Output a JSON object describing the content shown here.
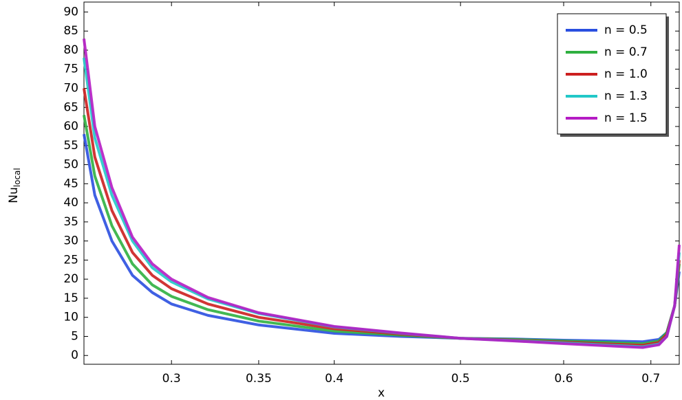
{
  "chart_data": {
    "type": "line",
    "xlabel": "x",
    "ylabel": "Nu",
    "ylabel_sub": "local",
    "x": [
      0.257,
      0.262,
      0.27,
      0.28,
      0.29,
      0.3,
      0.32,
      0.35,
      0.4,
      0.45,
      0.5,
      0.55,
      0.6,
      0.65,
      0.69,
      0.71,
      0.72,
      0.73,
      0.736
    ],
    "series": [
      {
        "name": "n = 0.5",
        "color": "#2a4fe0",
        "values": [
          58,
          42,
          30,
          21,
          16.5,
          13.5,
          10.5,
          8,
          5.8,
          5,
          4.5,
          4.3,
          4,
          3.8,
          3.6,
          4.2,
          6,
          13,
          22
        ]
      },
      {
        "name": "n = 0.7",
        "color": "#2fb040",
        "values": [
          63,
          47,
          34,
          24,
          18.5,
          15.5,
          12,
          9,
          6.4,
          5.3,
          4.5,
          4.2,
          3.8,
          3.4,
          3.1,
          3.8,
          6,
          13,
          24
        ]
      },
      {
        "name": "n = 1.0",
        "color": "#cc1f1f",
        "values": [
          70,
          52,
          38,
          27,
          21,
          17.5,
          13.5,
          10,
          7,
          5.6,
          4.5,
          4,
          3.5,
          3,
          2.7,
          3.4,
          5.5,
          13,
          25
        ]
      },
      {
        "name": "n = 1.3",
        "color": "#22c8c8",
        "values": [
          78,
          57,
          42,
          30,
          23,
          19.3,
          14.8,
          11,
          7.5,
          5.8,
          4.5,
          3.9,
          3.3,
          2.7,
          2.3,
          3,
          5,
          13,
          27
        ]
      },
      {
        "name": "n = 1.5",
        "color": "#b51cc4",
        "values": [
          83,
          60,
          44,
          31,
          24,
          20,
          15.2,
          11.2,
          7.6,
          5.9,
          4.5,
          3.8,
          3.1,
          2.5,
          2.1,
          2.8,
          5,
          13,
          29
        ]
      }
    ],
    "xlim": [
      0.257,
      0.736
    ],
    "xscale": "log",
    "xticks": [
      0.3,
      0.35,
      0.4,
      0.5,
      0.6,
      0.7
    ],
    "ylim": [
      -2.3,
      92.6
    ],
    "yticks": [
      0,
      5,
      10,
      15,
      20,
      25,
      30,
      35,
      40,
      45,
      50,
      55,
      60,
      65,
      70,
      75,
      80,
      85,
      90
    ],
    "legend": "upper right"
  }
}
